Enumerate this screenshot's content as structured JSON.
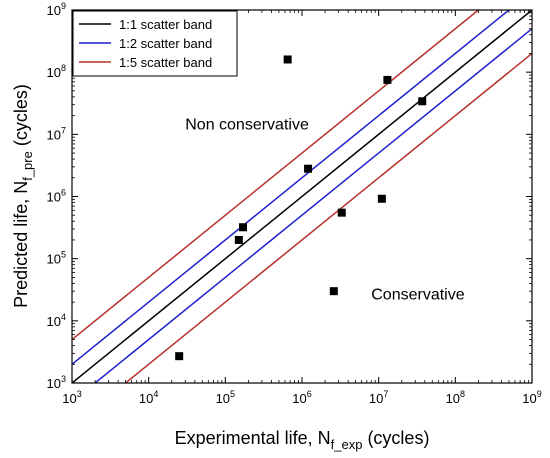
{
  "chart_data": {
    "type": "scatter",
    "xscale": "log",
    "yscale": "log",
    "xlim": [
      1000,
      1000000000
    ],
    "ylim": [
      1000,
      1000000000
    ],
    "xlabel": {
      "main": "Experimental life, N",
      "sub": "f_exp",
      "suffix": " (cycles)"
    },
    "ylabel": {
      "main": "Predicted life, N",
      "sub": "f_pre",
      "suffix": " (cycles)"
    },
    "x_ticks": [
      {
        "base": "10",
        "exp": "3",
        "value": 1000
      },
      {
        "base": "10",
        "exp": "4",
        "value": 10000
      },
      {
        "base": "10",
        "exp": "5",
        "value": 100000
      },
      {
        "base": "10",
        "exp": "6",
        "value": 1000000
      },
      {
        "base": "10",
        "exp": "7",
        "value": 10000000
      },
      {
        "base": "10",
        "exp": "8",
        "value": 100000000
      },
      {
        "base": "10",
        "exp": "9",
        "value": 1000000000
      }
    ],
    "y_ticks": [
      {
        "base": "10",
        "exp": "3",
        "value": 1000
      },
      {
        "base": "10",
        "exp": "4",
        "value": 10000
      },
      {
        "base": "10",
        "exp": "5",
        "value": 100000
      },
      {
        "base": "10",
        "exp": "6",
        "value": 1000000
      },
      {
        "base": "10",
        "exp": "7",
        "value": 10000000
      },
      {
        "base": "10",
        "exp": "8",
        "value": 100000000
      },
      {
        "base": "10",
        "exp": "9",
        "value": 1000000000
      }
    ],
    "bands": [
      {
        "name": "1:1 scatter band",
        "color": "#000000",
        "factors": [
          1
        ]
      },
      {
        "name": "1:2 scatter band",
        "color": "#1f1fcf",
        "factors": [
          2,
          0.5
        ]
      },
      {
        "name": "1:5 scatter band",
        "color": "#b8302a",
        "factors": [
          5,
          0.2
        ]
      }
    ],
    "points": [
      {
        "x": 25000,
        "y": 2700
      },
      {
        "x": 150000,
        "y": 200000
      },
      {
        "x": 170000,
        "y": 320000
      },
      {
        "x": 650000,
        "y": 160000000
      },
      {
        "x": 1200000,
        "y": 2800000
      },
      {
        "x": 2600000,
        "y": 30000
      },
      {
        "x": 3300000,
        "y": 550000
      },
      {
        "x": 11000000,
        "y": 920000
      },
      {
        "x": 13000000,
        "y": 75000000
      },
      {
        "x": 37000000,
        "y": 34000000
      }
    ],
    "annotations": [
      {
        "text": "Non conservative",
        "x": 30000,
        "y": 12000000
      },
      {
        "text": "Conservative",
        "x": 8000000,
        "y": 22000
      }
    ],
    "legend_position": "top-left",
    "grid": false
  }
}
